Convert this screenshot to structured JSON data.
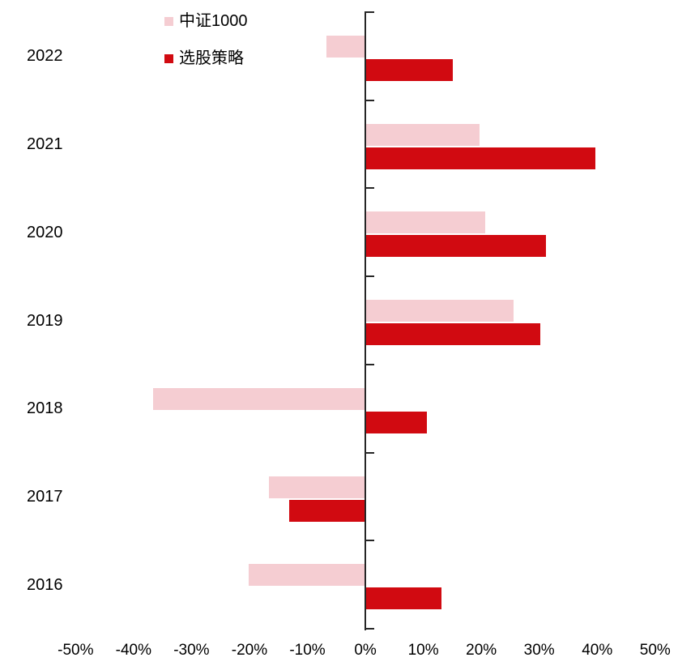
{
  "chart_data": {
    "type": "bar",
    "orientation": "horizontal",
    "title": "",
    "xlabel": "",
    "ylabel": "",
    "categories": [
      "2022",
      "2021",
      "2020",
      "2019",
      "2018",
      "2017",
      "2016"
    ],
    "series": [
      {
        "name": "中证1000",
        "slug": "csi1000",
        "color": "#F5CDD2",
        "values": [
          -6.5,
          19.5,
          20.5,
          25.5,
          -36.5,
          -16.5,
          -20
        ]
      },
      {
        "name": "选股策略",
        "slug": "stock-selection-strategy",
        "color": "#D10A11",
        "values": [
          15,
          39.5,
          31,
          30,
          10.5,
          -13,
          13
        ]
      }
    ],
    "x_ticks": [
      "-50%",
      "-40%",
      "-30%",
      "-20%",
      "-10%",
      "0%",
      "10%",
      "20%",
      "30%",
      "40%",
      "50%"
    ],
    "x_tick_values": [
      -50,
      -40,
      -30,
      -20,
      -10,
      0,
      10,
      20,
      30,
      40,
      50
    ],
    "xlim": [
      -50,
      50
    ],
    "grid": false,
    "legend_position": "top-inside-left",
    "axis_color": "#262626",
    "text_color": "#000000",
    "background_color": "#ffffff"
  }
}
